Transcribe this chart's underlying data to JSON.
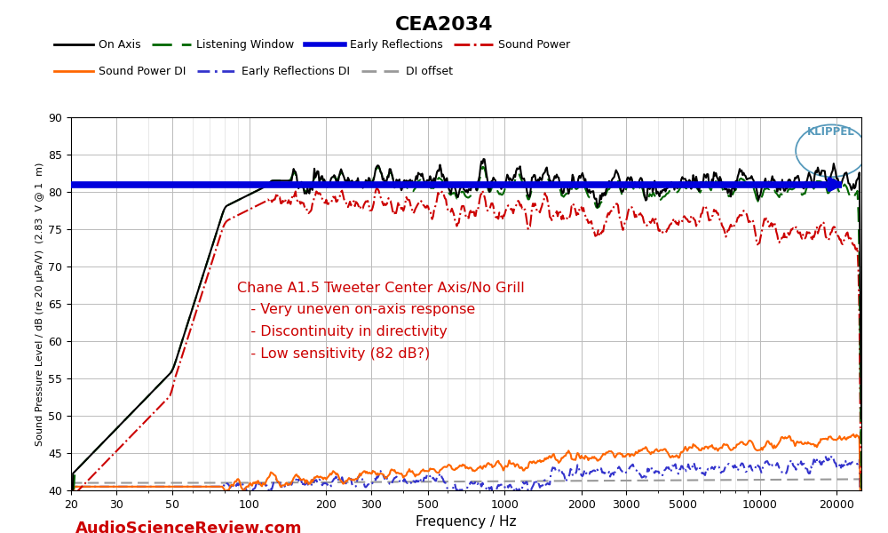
{
  "title": "CEA2034",
  "xlabel": "Frequency / Hz",
  "ylabel": "Sound Pressure Level / dB (re 20 μPa/V)  (2.83  V @ 1  m)",
  "xlim": [
    20,
    25000
  ],
  "ylim": [
    40,
    90
  ],
  "yticks": [
    40,
    45,
    50,
    55,
    60,
    65,
    70,
    75,
    80,
    85,
    90
  ],
  "annotation_lines": [
    "Chane A1.5 Tweeter Center Axis/No Grill",
    "   - Very uneven on-axis response",
    "   - Discontinuity in directivity",
    "   - Low sensitivity (82 dB?)"
  ],
  "annotation_color": "#cc0000",
  "watermark": "AudioScienceReview.com",
  "watermark_color": "#cc0000",
  "klippel_color": "#5599bb",
  "background_color": "#ffffff",
  "grid_color": "#bbbbbb",
  "er_line_y": 81.0,
  "colors": {
    "on_axis": "#000000",
    "listening_window": "#006600",
    "early_reflections": "#0000dd",
    "sound_power": "#cc0000",
    "sound_power_di": "#ff6600",
    "early_reflections_di": "#3333cc",
    "di_offset": "#999999"
  }
}
